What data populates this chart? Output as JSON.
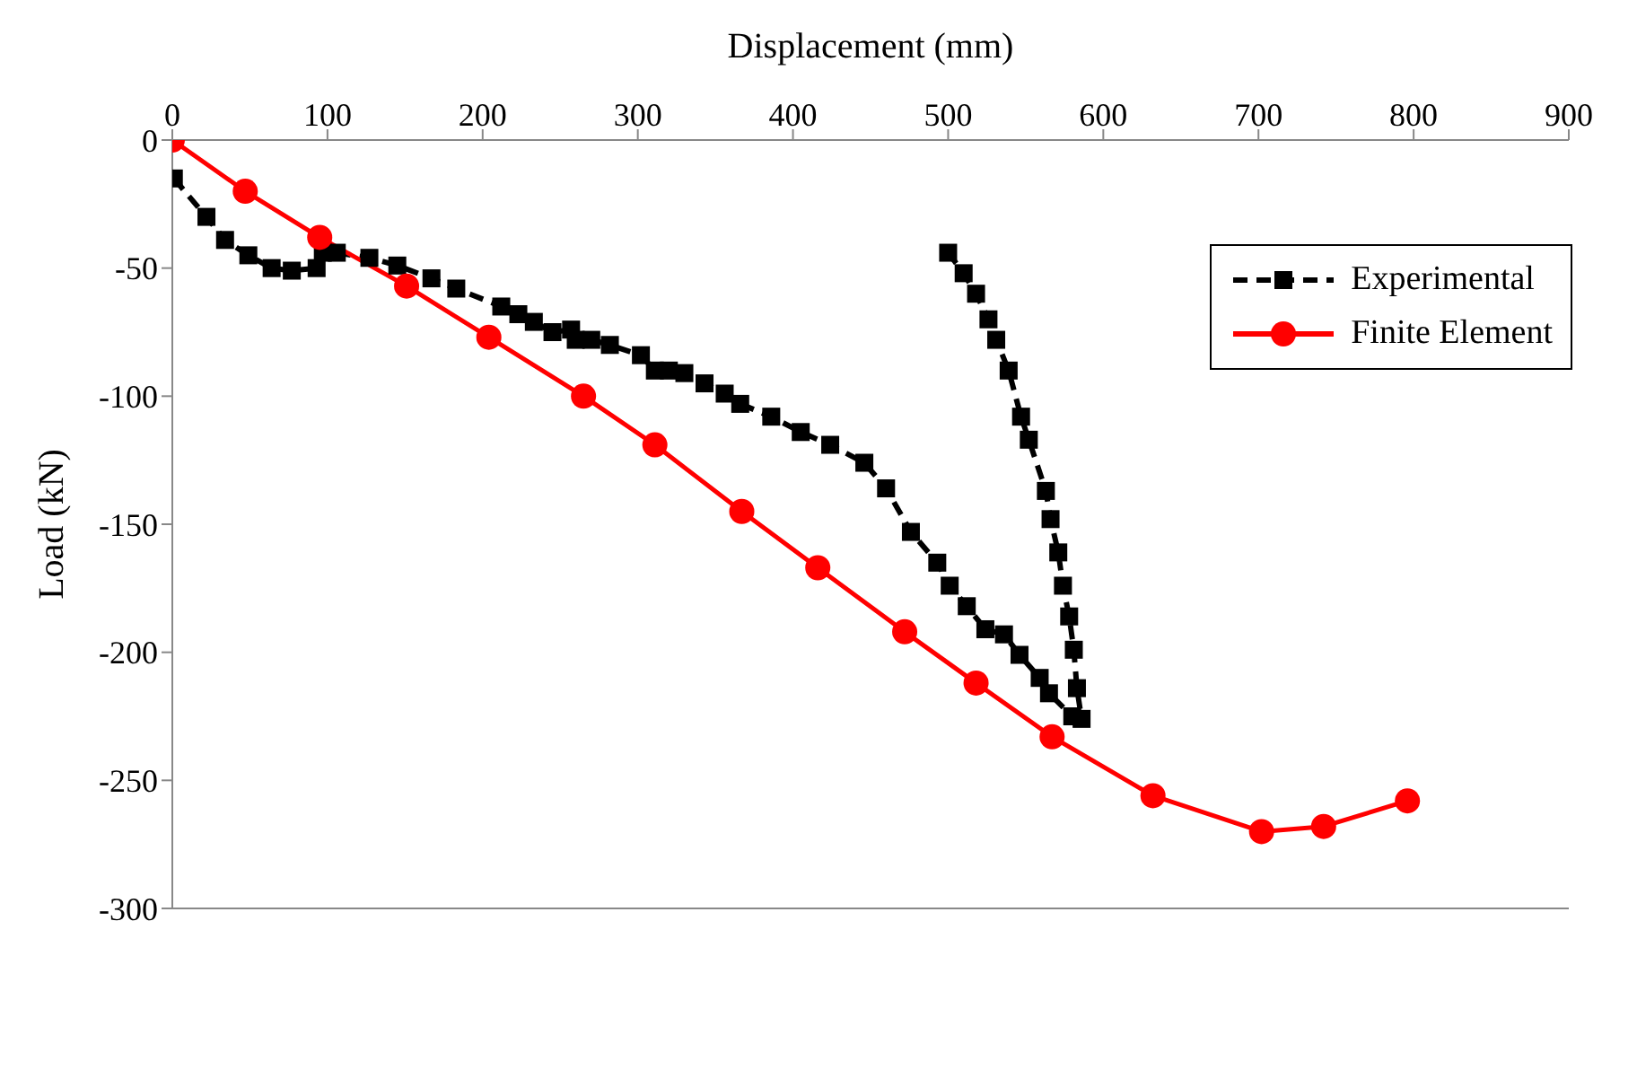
{
  "chart_data": {
    "type": "line",
    "xlabel": "Displacement (mm)",
    "ylabel": "Load (kN)",
    "xlim": [
      0,
      900
    ],
    "xticks": [
      0,
      100,
      200,
      300,
      400,
      500,
      600,
      700,
      800,
      900
    ],
    "ylim": [
      -300,
      0
    ],
    "yticks": [
      -300,
      -250,
      -200,
      -150,
      -100,
      -50,
      0
    ],
    "legend": "top right",
    "series": [
      {
        "name": "Experimental",
        "color": "#000000",
        "marker": "square",
        "line_style": "dashed",
        "x": [
          1,
          22,
          34,
          49,
          64,
          77,
          93,
          97,
          106,
          127,
          145,
          167,
          183,
          212,
          223,
          233,
          245,
          257,
          260,
          270,
          282,
          302,
          311,
          320,
          330,
          343,
          356,
          366,
          386,
          405,
          424,
          446,
          460,
          476,
          493,
          501,
          512,
          524,
          536,
          546,
          559,
          565,
          580,
          586,
          583,
          581,
          578,
          574,
          571,
          566,
          563,
          552,
          547,
          539,
          531,
          526,
          518,
          510,
          500
        ],
        "values": [
          -15,
          -30,
          -39,
          -45,
          -50,
          -51,
          -50,
          -44,
          -44,
          -46,
          -49,
          -54,
          -58,
          -65,
          -68,
          -71,
          -75,
          -74,
          -78,
          -78,
          -80,
          -84,
          -90,
          -90,
          -91,
          -95,
          -99,
          -103,
          -108,
          -114,
          -119,
          -126,
          -136,
          -153,
          -165,
          -174,
          -182,
          -191,
          -193,
          -201,
          -210,
          -216,
          -225,
          -226,
          -214,
          -199,
          -186,
          -174,
          -161,
          -148,
          -137,
          -117,
          -108,
          -90,
          -78,
          -70,
          -60,
          -52,
          -44
        ]
      },
      {
        "name": "Finite Element",
        "color": "#ff0000",
        "marker": "circle",
        "line_style": "solid",
        "x": [
          0,
          47,
          95,
          151,
          204,
          265,
          311,
          367,
          416,
          472,
          518,
          567,
          632,
          702,
          742,
          796
        ],
        "values": [
          0,
          -20,
          -38,
          -57,
          -77,
          -100,
          -119,
          -145,
          -167,
          -192,
          -212,
          -233,
          -256,
          -270,
          -268,
          -258
        ]
      }
    ]
  }
}
